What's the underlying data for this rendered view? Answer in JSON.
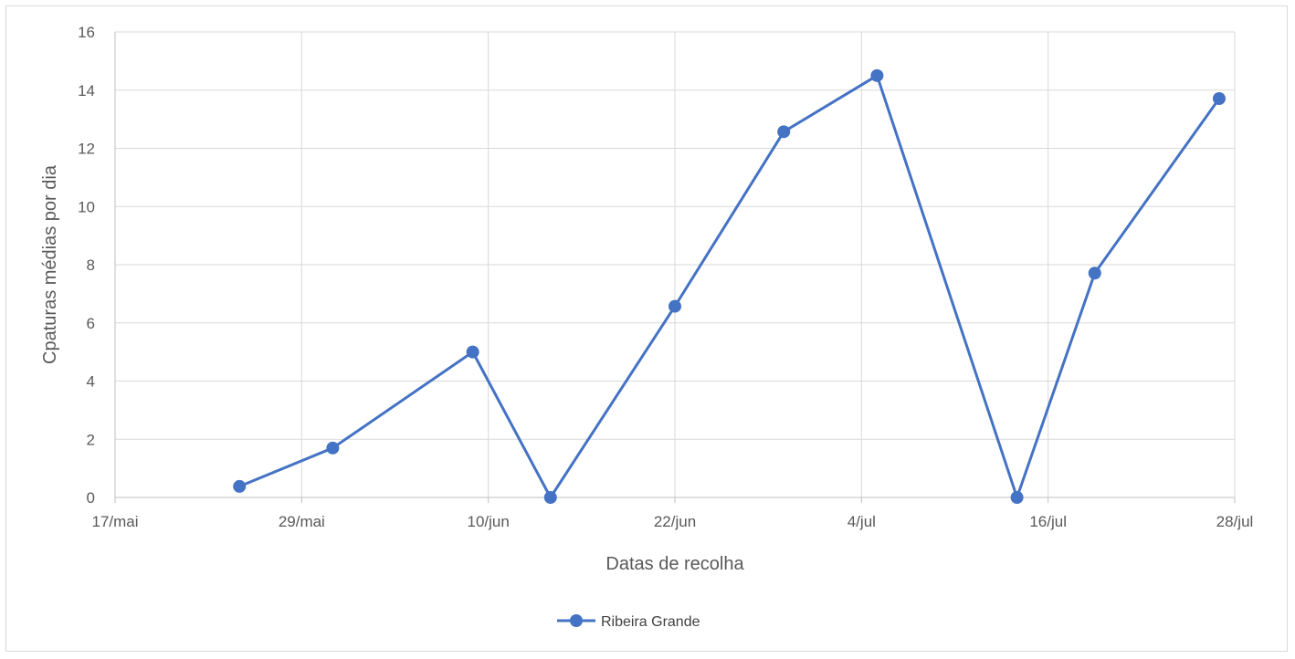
{
  "chart_data": {
    "type": "line",
    "xlabel": "Datas de recolha",
    "ylabel": "Cpaturas médias por dia",
    "ylim": [
      0,
      16
    ],
    "yticks": [
      0,
      2,
      4,
      6,
      8,
      10,
      12,
      14,
      16
    ],
    "x_tick_labels": [
      "17/mai",
      "29/mai",
      "10/jun",
      "22/jun",
      "4/jul",
      "16/jul",
      "28/jul"
    ],
    "x_tick_dates": [
      "2019-05-17",
      "2019-05-29",
      "2019-06-10",
      "2019-06-22",
      "2019-07-04",
      "2019-07-16",
      "2019-07-28"
    ],
    "grid": true,
    "legend_position": "bottom",
    "series": [
      {
        "name": "Ribeira Grande",
        "color": "#4472C4",
        "marker": "circle",
        "points": [
          {
            "x": "2019-05-25",
            "y": 0.38
          },
          {
            "x": "2019-05-31",
            "y": 1.7
          },
          {
            "x": "2019-06-09",
            "y": 5.0
          },
          {
            "x": "2019-06-14",
            "y": 0.0
          },
          {
            "x": "2019-06-22",
            "y": 6.57
          },
          {
            "x": "2019-06-29",
            "y": 12.57
          },
          {
            "x": "2019-07-05",
            "y": 14.5
          },
          {
            "x": "2019-07-14",
            "y": 0.0
          },
          {
            "x": "2019-07-19",
            "y": 7.71
          },
          {
            "x": "2019-07-27",
            "y": 13.71
          }
        ]
      }
    ]
  }
}
